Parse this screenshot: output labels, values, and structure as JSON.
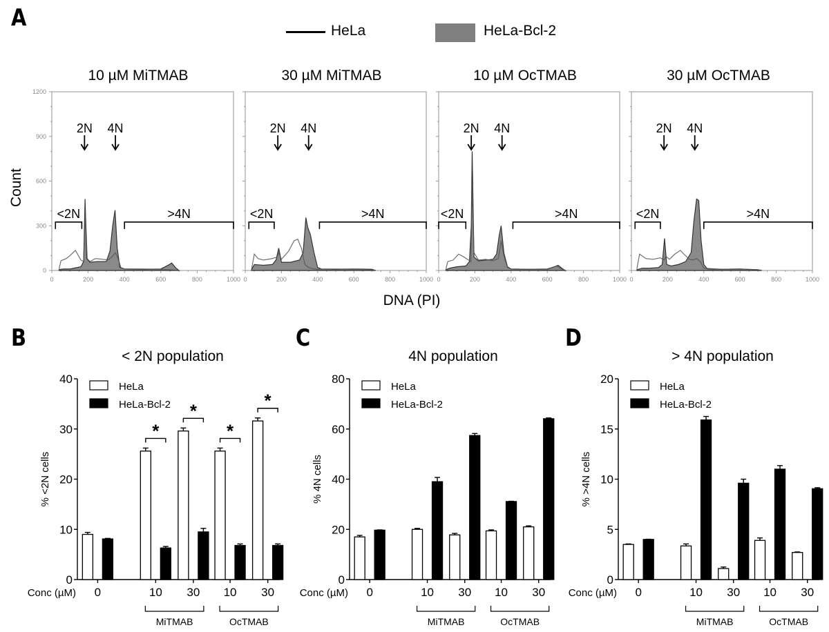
{
  "panel_letters": {
    "a": "A",
    "b": "B",
    "c": "C",
    "d": "D"
  },
  "legend_top": {
    "items": [
      {
        "label": "HeLa",
        "style": "line",
        "color": "#000000"
      },
      {
        "label": "HeLa-Bcl-2",
        "style": "filled",
        "color": "#808080"
      }
    ]
  },
  "colors": {
    "hela_line": "#555555",
    "bcl2_fill": "#8a8a8a",
    "bcl2_line": "#333333",
    "axis": "#999999"
  },
  "chart_data": [
    {
      "type": "area",
      "panel": "A",
      "title": "10 µM MiTMAB",
      "xlabel": "DNA (PI)",
      "ylabel": "Count",
      "xlim": [
        0,
        1000
      ],
      "ylim": [
        0,
        1200
      ],
      "xticks": [
        "0",
        "200",
        "400",
        "600",
        "800",
        "1000"
      ],
      "yticks": [
        "0",
        "300",
        "600",
        "900",
        "1200"
      ],
      "annotations": {
        "peak_labels": [
          "2N",
          "4N"
        ],
        "peak_x": [
          180,
          350
        ],
        "gates": [
          {
            "label": "<2N",
            "x": [
              20,
              165
            ]
          },
          {
            "label": ">4N",
            "x": [
              400,
              1000
            ]
          }
        ]
      },
      "series": [
        {
          "name": "HeLa",
          "x": [
            40,
            50,
            80,
            100,
            130,
            160,
            175,
            185,
            195,
            210,
            240,
            280,
            310,
            330,
            350,
            365,
            380,
            400,
            500,
            600,
            650,
            700
          ],
          "y": [
            10,
            65,
            80,
            100,
            135,
            70,
            60,
            400,
            80,
            60,
            80,
            75,
            70,
            90,
            120,
            80,
            20,
            10,
            10,
            8,
            5,
            0
          ]
        },
        {
          "name": "HeLa-Bcl-2",
          "x": [
            40,
            60,
            100,
            160,
            175,
            183,
            192,
            210,
            250,
            300,
            320,
            335,
            348,
            360,
            375,
            400,
            500,
            600,
            640,
            660,
            680,
            700
          ],
          "y": [
            5,
            10,
            10,
            25,
            60,
            480,
            80,
            55,
            60,
            60,
            130,
            300,
            405,
            150,
            20,
            10,
            8,
            10,
            35,
            50,
            20,
            0
          ]
        }
      ]
    },
    {
      "type": "area",
      "panel": "A",
      "title": "30 µM MiTMAB",
      "xlabel": "DNA (PI)",
      "ylabel": "Count",
      "xlim": [
        0,
        1000
      ],
      "ylim": [
        0,
        1200
      ],
      "xticks": [
        "0",
        "200",
        "400",
        "600",
        "800",
        "1000"
      ],
      "yticks": [
        "0",
        "300",
        "600",
        "900",
        "1200"
      ],
      "annotations": {
        "peak_labels": [
          "2N",
          "4N"
        ],
        "peak_x": [
          180,
          350
        ],
        "gates": [
          {
            "label": "<2N",
            "x": [
              20,
              160
            ]
          },
          {
            "label": ">4N",
            "x": [
              410,
              1000
            ]
          }
        ]
      },
      "series": [
        {
          "name": "HeLa",
          "x": [
            35,
            50,
            70,
            100,
            150,
            175,
            185,
            200,
            240,
            270,
            290,
            310,
            330,
            350,
            380,
            400,
            500,
            600,
            700,
            720
          ],
          "y": [
            10,
            110,
            80,
            70,
            80,
            90,
            120,
            75,
            130,
            200,
            210,
            150,
            40,
            20,
            10,
            8,
            10,
            8,
            5,
            0
          ]
        },
        {
          "name": "HeLa-Bcl-2",
          "x": [
            35,
            50,
            100,
            150,
            170,
            185,
            200,
            250,
            300,
            320,
            335,
            345,
            360,
            380,
            400,
            420,
            500,
            600,
            700,
            720
          ],
          "y": [
            5,
            40,
            35,
            40,
            70,
            150,
            55,
            55,
            70,
            120,
            355,
            290,
            240,
            120,
            20,
            10,
            8,
            10,
            8,
            0
          ]
        }
      ]
    },
    {
      "type": "area",
      "panel": "A",
      "title": "10 µM OcTMAB",
      "xlabel": "DNA (PI)",
      "ylabel": "Count",
      "xlim": [
        0,
        1000
      ],
      "ylim": [
        0,
        1200
      ],
      "xticks": [
        "0",
        "200",
        "400",
        "600",
        "800",
        "1000"
      ],
      "yticks": [
        "0",
        "300",
        "600",
        "900",
        "1200"
      ],
      "annotations": {
        "peak_labels": [
          "2N",
          "4N"
        ],
        "peak_x": [
          180,
          350
        ],
        "gates": [
          {
            "label": "<2N",
            "x": [
              0,
              150
            ]
          },
          {
            "label": ">4N",
            "x": [
              410,
              1000
            ]
          }
        ]
      },
      "series": [
        {
          "name": "HeLa",
          "x": [
            40,
            50,
            80,
            110,
            140,
            165,
            178,
            185,
            195,
            220,
            260,
            300,
            330,
            345,
            360,
            380,
            400,
            500,
            600,
            650,
            680,
            700
          ],
          "y": [
            10,
            60,
            70,
            110,
            90,
            70,
            60,
            570,
            120,
            70,
            75,
            65,
            80,
            200,
            100,
            20,
            10,
            8,
            8,
            30,
            10,
            0
          ]
        },
        {
          "name": "HeLa-Bcl-2",
          "x": [
            40,
            60,
            100,
            150,
            170,
            180,
            185,
            195,
            220,
            260,
            300,
            320,
            335,
            345,
            360,
            380,
            400,
            500,
            600,
            640,
            660,
            680,
            700
          ],
          "y": [
            5,
            15,
            25,
            30,
            60,
            300,
            800,
            90,
            65,
            70,
            75,
            110,
            240,
            300,
            120,
            25,
            10,
            8,
            10,
            25,
            35,
            15,
            0
          ]
        }
      ]
    },
    {
      "type": "area",
      "panel": "A",
      "title": "30 µM OcTMAB",
      "xlabel": "DNA (PI)",
      "ylabel": "Count",
      "xlim": [
        0,
        1000
      ],
      "ylim": [
        0,
        1200
      ],
      "xticks": [
        "0",
        "200",
        "400",
        "600",
        "800",
        "1000"
      ],
      "yticks": [
        "0",
        "300",
        "600",
        "900",
        "1200"
      ],
      "annotations": {
        "peak_labels": [
          "2N",
          "4N"
        ],
        "peak_x": [
          180,
          350
        ],
        "gates": [
          {
            "label": "<2N",
            "x": [
              20,
              160
            ]
          },
          {
            "label": ">4N",
            "x": [
              400,
              1000
            ]
          }
        ]
      },
      "series": [
        {
          "name": "HeLa",
          "x": [
            30,
            45,
            80,
            120,
            160,
            180,
            190,
            210,
            240,
            270,
            290,
            320,
            340,
            360,
            380,
            400,
            500,
            600,
            700,
            720
          ],
          "y": [
            10,
            110,
            80,
            75,
            85,
            70,
            95,
            75,
            110,
            135,
            110,
            75,
            70,
            80,
            60,
            15,
            8,
            10,
            5,
            0
          ]
        },
        {
          "name": "HeLa-Bcl-2",
          "x": [
            30,
            60,
            100,
            150,
            170,
            183,
            195,
            220,
            260,
            300,
            330,
            345,
            360,
            372,
            385,
            400,
            420,
            500,
            600,
            700,
            720
          ],
          "y": [
            5,
            15,
            15,
            20,
            40,
            215,
            40,
            30,
            40,
            60,
            120,
            330,
            480,
            470,
            200,
            40,
            10,
            8,
            10,
            5,
            0
          ]
        }
      ]
    },
    {
      "type": "bar",
      "panel": "B",
      "title": "< 2N population",
      "xlabel": "Conc (µM)",
      "ylabel": "% <2N cells",
      "ylim": [
        0,
        40
      ],
      "yticks": [
        "0",
        "10",
        "20",
        "30",
        "40"
      ],
      "categories": [
        "0",
        "10",
        "30",
        "10",
        "30"
      ],
      "groups": [
        {
          "label": "MiTMAB",
          "categories": [
            1,
            2
          ]
        },
        {
          "label": "OcTMAB",
          "categories": [
            3,
            4
          ]
        }
      ],
      "series": [
        {
          "name": "HeLa",
          "values": [
            9.0,
            25.6,
            29.6,
            25.6,
            31.6
          ],
          "errors": [
            0.4,
            0.6,
            0.6,
            0.6,
            0.6
          ],
          "color": "#ffffff"
        },
        {
          "name": "HeLa-Bcl-2",
          "values": [
            8.1,
            6.3,
            9.5,
            6.8,
            6.8
          ],
          "errors": [
            0.1,
            0.3,
            0.7,
            0.3,
            0.3
          ],
          "color": "#000000"
        }
      ],
      "significance": [
        {
          "category": 1,
          "label": "*"
        },
        {
          "category": 2,
          "label": "*"
        },
        {
          "category": 3,
          "label": "*"
        },
        {
          "category": 4,
          "label": "*"
        }
      ],
      "legend": "top-left"
    },
    {
      "type": "bar",
      "panel": "C",
      "title": "4N population",
      "xlabel": "Conc (µM)",
      "ylabel": "% 4N cells",
      "ylim": [
        0,
        80
      ],
      "yticks": [
        "0",
        "20",
        "40",
        "60",
        "80"
      ],
      "categories": [
        "0",
        "10",
        "30",
        "10",
        "30"
      ],
      "groups": [
        {
          "label": "MiTMAB",
          "categories": [
            1,
            2
          ]
        },
        {
          "label": "OcTMAB",
          "categories": [
            3,
            4
          ]
        }
      ],
      "series": [
        {
          "name": "HeLa",
          "values": [
            17.0,
            20.0,
            17.8,
            19.4,
            21.0
          ],
          "errors": [
            0.6,
            0.4,
            0.6,
            0.4,
            0.4
          ],
          "color": "#ffffff"
        },
        {
          "name": "HeLa-Bcl-2",
          "values": [
            19.7,
            39.0,
            57.4,
            31.1,
            64.1
          ],
          "errors": [
            0.1,
            1.7,
            0.8,
            0.1,
            0.3
          ],
          "color": "#000000"
        }
      ],
      "significance": [],
      "legend": "top-left"
    },
    {
      "type": "bar",
      "panel": "D",
      "title": "> 4N population",
      "xlabel": "Conc (µM)",
      "ylabel": "% >4N cells",
      "ylim": [
        0,
        20
      ],
      "yticks": [
        "0",
        "5",
        "10",
        "15",
        "20"
      ],
      "categories": [
        "0",
        "10",
        "30",
        "10",
        "30"
      ],
      "groups": [
        {
          "label": "MiTMAB",
          "categories": [
            1,
            2
          ]
        },
        {
          "label": "OcTMAB",
          "categories": [
            3,
            4
          ]
        }
      ],
      "series": [
        {
          "name": "HeLa",
          "values": [
            3.5,
            3.35,
            1.1,
            3.9,
            2.7
          ],
          "errors": [
            0.05,
            0.2,
            0.15,
            0.25,
            0.05
          ],
          "color": "#ffffff"
        },
        {
          "name": "HeLa-Bcl-2",
          "values": [
            4.0,
            15.9,
            9.6,
            11.0,
            9.05
          ],
          "errors": [
            0.02,
            0.35,
            0.4,
            0.35,
            0.1
          ],
          "color": "#000000"
        }
      ],
      "significance": [],
      "legend": "top-left"
    }
  ]
}
